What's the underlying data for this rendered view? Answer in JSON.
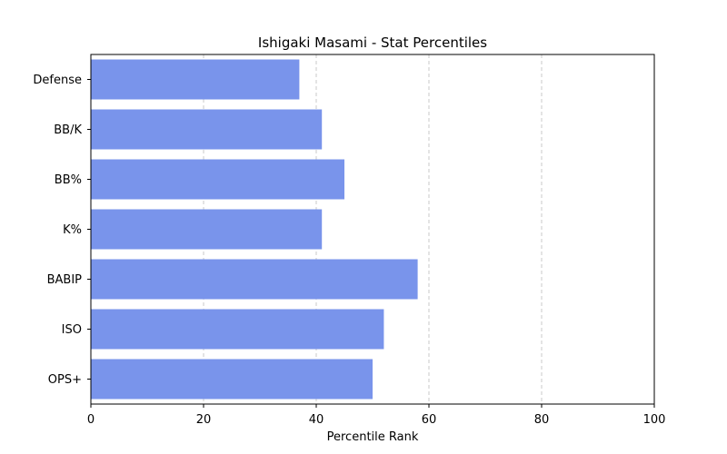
{
  "chart_data": {
    "type": "bar",
    "orientation": "horizontal",
    "title": "Ishigaki Masami - Stat Percentiles",
    "xlabel": "Percentile Rank",
    "ylabel": "",
    "xlim": [
      0,
      100
    ],
    "xticks": [
      0,
      20,
      40,
      60,
      80,
      100
    ],
    "grid": "x-axis dashed",
    "bar_color": "#7994eb",
    "categories": [
      "Defense",
      "BB/K",
      "BB%",
      "K%",
      "BABIP",
      "ISO",
      "OPS+"
    ],
    "values": [
      37,
      41,
      45,
      41,
      58,
      52,
      50
    ]
  }
}
